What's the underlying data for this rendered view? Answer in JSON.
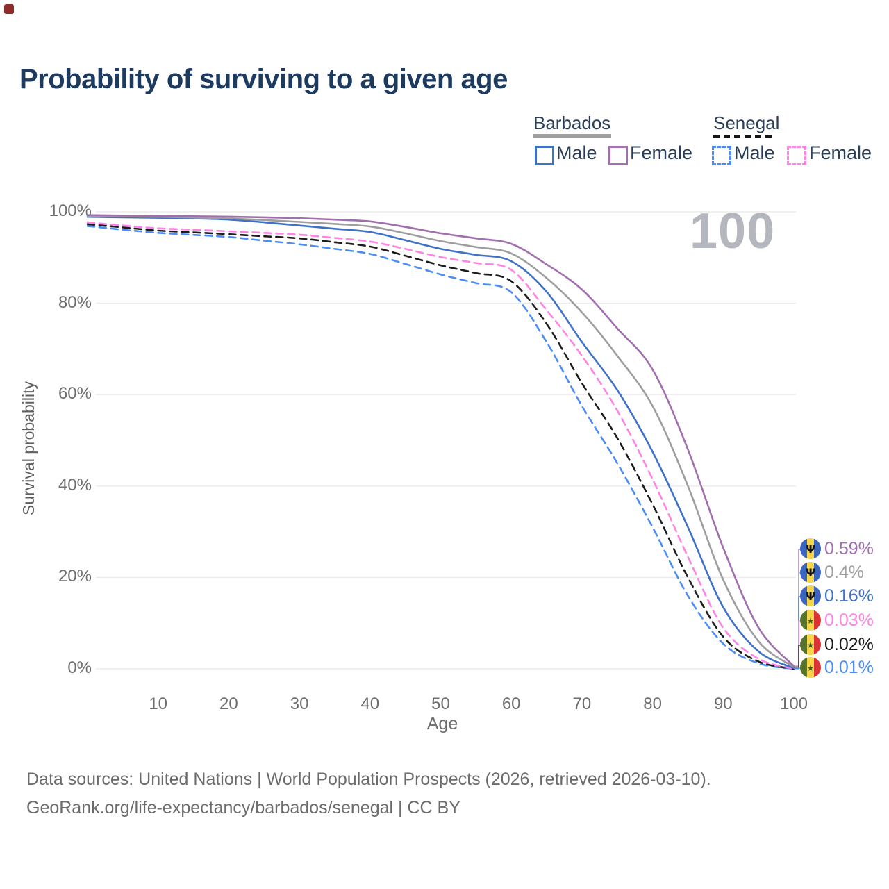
{
  "title": "Probability of surviving to a given age",
  "watermark": "100",
  "legend": {
    "groups": [
      {
        "name": "Barbados",
        "male_label": "Male",
        "female_label": "Female",
        "line_style": "solid",
        "line_color": "#9e9e9e"
      },
      {
        "name": "Senegal",
        "male_label": "Male",
        "female_label": "Female",
        "line_style": "dashed",
        "line_color": "#161616"
      }
    ]
  },
  "chart_data": {
    "type": "line",
    "title": "Probability of surviving to a given age",
    "xlabel": "Age",
    "ylabel": "Survival probability",
    "xlim": [
      0,
      100
    ],
    "ylim": [
      0,
      100
    ],
    "grid": "horizontal",
    "x_ticks": [
      10,
      20,
      30,
      40,
      50,
      60,
      70,
      80,
      90,
      100
    ],
    "y_ticks": [
      0,
      20,
      40,
      60,
      80,
      100
    ],
    "y_tick_labels": [
      "0%",
      "20%",
      "40%",
      "60%",
      "80%",
      "100%"
    ],
    "age_marker": "100",
    "x": [
      0,
      5,
      10,
      15,
      20,
      25,
      30,
      35,
      40,
      45,
      50,
      55,
      60,
      65,
      70,
      75,
      80,
      85,
      90,
      95,
      100
    ],
    "series": [
      {
        "name": "Barbados Female",
        "color": "#a26fae",
        "dashed": false,
        "flag": "barbados",
        "end_label": "0.59%",
        "values": [
          99.3,
          99.2,
          99.1,
          99.05,
          98.95,
          98.8,
          98.6,
          98.3,
          97.9,
          96.7,
          95.3,
          94.2,
          93.0,
          88.5,
          83.0,
          74.5,
          65.5,
          48.0,
          26.5,
          9.0,
          0.59
        ]
      },
      {
        "name": "Barbados",
        "color": "#9e9e9e",
        "dashed": false,
        "flag": "barbados",
        "end_label": "0.4%",
        "values": [
          99.1,
          99.0,
          98.9,
          98.75,
          98.55,
          98.2,
          97.8,
          97.35,
          96.8,
          95.3,
          93.6,
          92.3,
          90.9,
          85.5,
          78.0,
          68.5,
          57.5,
          40.0,
          19.5,
          6.0,
          0.4
        ]
      },
      {
        "name": "Barbados Male",
        "color": "#3f72c6",
        "dashed": false,
        "flag": "barbados",
        "end_label": "0.16%",
        "values": [
          98.9,
          98.8,
          98.7,
          98.55,
          98.3,
          97.7,
          97.0,
          96.3,
          95.6,
          93.8,
          91.9,
          90.6,
          89.2,
          82.5,
          71.5,
          61.0,
          47.5,
          31.0,
          13.5,
          3.8,
          0.16
        ]
      },
      {
        "name": "Senegal Female",
        "color": "#ff82e6",
        "dashed": true,
        "flag": "senegal",
        "end_label": "0.03%",
        "values": [
          97.7,
          97.0,
          96.4,
          96.1,
          95.75,
          95.4,
          95.0,
          94.3,
          93.5,
          91.9,
          90.1,
          88.8,
          87.3,
          78.5,
          68.5,
          56.5,
          41.5,
          24.5,
          9.0,
          2.2,
          0.03
        ]
      },
      {
        "name": "Senegal",
        "color": "#1c1c1c",
        "dashed": true,
        "flag": "senegal",
        "end_label": "0.02%",
        "values": [
          97.3,
          96.6,
          95.9,
          95.5,
          95.1,
          94.65,
          94.2,
          93.35,
          92.4,
          90.4,
          88.3,
          86.6,
          84.8,
          75.5,
          62.5,
          50.5,
          36.0,
          20.0,
          7.0,
          1.6,
          0.02
        ]
      },
      {
        "name": "Senegal Male",
        "color": "#4b8cf5",
        "dashed": true,
        "flag": "senegal",
        "end_label": "0.01%",
        "values": [
          96.9,
          96.1,
          95.4,
          94.95,
          94.5,
          93.7,
          92.9,
          91.9,
          90.8,
          88.6,
          86.3,
          84.4,
          82.4,
          71.5,
          57.5,
          45.0,
          31.0,
          16.0,
          5.5,
          1.2,
          0.01
        ]
      }
    ]
  },
  "footer": {
    "line1": "Data sources: United Nations | World Population Prospects (2026, retrieved 2026-03-10).",
    "line2": "GeoRank.org/life-expectancy/barbados/senegal | CC BY"
  }
}
